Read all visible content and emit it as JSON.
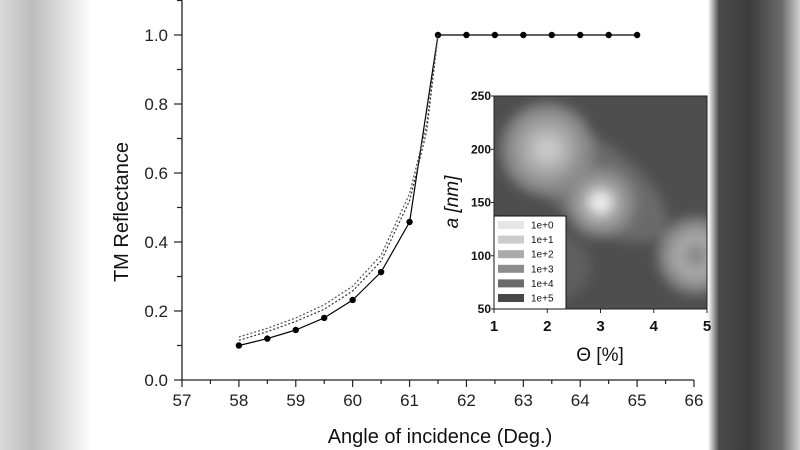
{
  "chart_data": [
    {
      "type": "line",
      "xlabel": "Angle of incidence (Deg.)",
      "ylabel": "TM Reflectance",
      "xlim": [
        57,
        66
      ],
      "ylim": [
        0,
        1.1
      ],
      "xticks": [
        "57",
        "58",
        "59",
        "60",
        "61",
        "62",
        "63",
        "64",
        "65",
        "66"
      ],
      "yticks": [
        "0.0",
        "0.2",
        "0.4",
        "0.6",
        "0.8",
        "1.0"
      ],
      "grid": false,
      "series": [
        {
          "style": "solid-markers",
          "color": "#000000",
          "x": [
            58,
            58.5,
            59,
            59.5,
            60,
            60.5,
            61,
            61.5,
            62,
            62.5,
            63,
            63.5,
            64,
            64.5,
            65
          ],
          "y": [
            0.1,
            0.12,
            0.145,
            0.18,
            0.232,
            0.313,
            0.458,
            1.0,
            1.0,
            1.0,
            1.0,
            1.0,
            1.0,
            1.0,
            1.0
          ]
        },
        {
          "style": "dotted",
          "color": "#333333",
          "x": [
            58,
            58.5,
            59,
            59.5,
            60,
            60.5,
            61,
            61.3,
            61.5
          ],
          "y": [
            0.115,
            0.14,
            0.17,
            0.205,
            0.258,
            0.345,
            0.52,
            0.72,
            1.0
          ]
        },
        {
          "style": "dotted",
          "color": "#555555",
          "x": [
            58,
            58.5,
            59,
            59.5,
            60,
            60.5,
            61,
            61.3,
            61.5
          ],
          "y": [
            0.125,
            0.15,
            0.18,
            0.218,
            0.272,
            0.362,
            0.54,
            0.74,
            1.0
          ]
        }
      ]
    },
    {
      "type": "heatmap",
      "xlabel": "Θ [%]",
      "ylabel": "a [nm]",
      "xlim": [
        1,
        5
      ],
      "ylim": [
        50,
        250
      ],
      "xticks": [
        "1",
        "2",
        "3",
        "4",
        "5"
      ],
      "yticks": [
        "50",
        "100",
        "150",
        "200",
        "250"
      ],
      "legend": [
        "1e+0",
        "1e+1",
        "1e+2",
        "1e+3",
        "1e+4",
        "1e+5"
      ],
      "legend_colors": [
        "#e6e6e6",
        "#cccccc",
        "#aaaaaa",
        "#8c8c8c",
        "#6a6a6a",
        "#474747"
      ],
      "legend_position": "bottom-left",
      "bright_regions": [
        {
          "x": 3,
          "y": 150,
          "level": "1e+0"
        },
        {
          "x": 2,
          "y": 200,
          "level": "1e+1"
        },
        {
          "x": 4.8,
          "y": 100,
          "level": "1e+3"
        }
      ]
    }
  ]
}
